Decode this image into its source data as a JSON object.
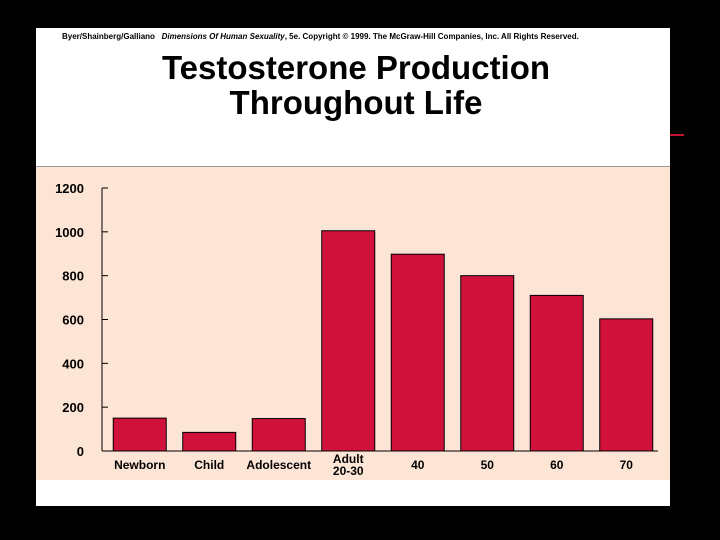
{
  "slide": {
    "credit_authors": "Byer/Shainberg/Galliano",
    "credit_book": "Dimensions Of Human Sexuality",
    "credit_rest": ", 5e. Copyright © 1999. The McGraw-Hill Companies, Inc. All Rights Reserved.",
    "title_line1": "Testosterone Production",
    "title_line2": "Throughout Life"
  },
  "colors": {
    "bar": "#d0123a",
    "panel": "#fde5d6",
    "background": "#000000"
  },
  "chart_data": {
    "type": "bar",
    "title": "Testosterone Production Throughout Life",
    "xlabel": "",
    "ylabel": "",
    "categories": [
      [
        "Newborn"
      ],
      [
        "Child"
      ],
      [
        "Adolescent"
      ],
      [
        "Adult",
        "20-30"
      ],
      [
        "40"
      ],
      [
        "50"
      ],
      [
        "60"
      ],
      [
        "70"
      ]
    ],
    "values": [
      150,
      85,
      148,
      1005,
      898,
      800,
      710,
      603
    ],
    "ylim": [
      0,
      1200
    ],
    "yticks": [
      0,
      200,
      400,
      600,
      800,
      1000,
      1200
    ],
    "grid": false,
    "legend": "none"
  }
}
